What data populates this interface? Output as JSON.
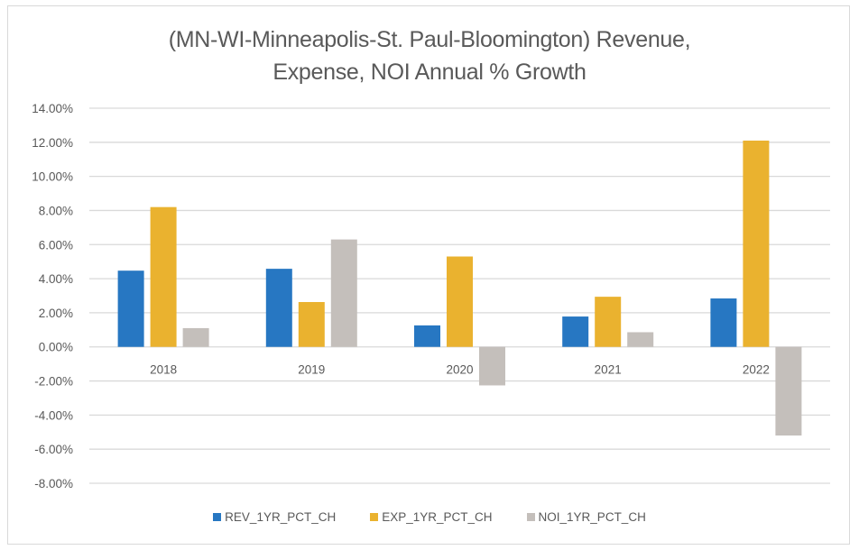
{
  "chart_data": {
    "type": "bar",
    "title_lines": [
      "(MN-WI-Minneapolis-St. Paul-Bloomington) Revenue,",
      "Expense, NOI Annual % Growth"
    ],
    "categories": [
      "2018",
      "2019",
      "2020",
      "2021",
      "2022"
    ],
    "series": [
      {
        "name": "REV_1YR_PCT_CH",
        "color": "#2777C2",
        "values": [
          4.47,
          4.58,
          1.26,
          1.78,
          2.84
        ]
      },
      {
        "name": "EXP_1YR_PCT_CH",
        "color": "#EAB22F",
        "values": [
          8.2,
          2.63,
          5.3,
          2.94,
          12.1
        ]
      },
      {
        "name": "NOI_1YR_PCT_CH",
        "color": "#C4BFBB",
        "values": [
          1.1,
          6.3,
          -2.26,
          0.86,
          -5.2
        ]
      }
    ],
    "ylim": [
      -8,
      14
    ],
    "yticks": [
      14,
      12,
      10,
      8,
      6,
      4,
      2,
      0,
      -2,
      -4,
      -6,
      -8
    ],
    "ytick_labels": [
      "14.00%",
      "12.00%",
      "10.00%",
      "8.00%",
      "6.00%",
      "4.00%",
      "2.00%",
      "0.00%",
      "-2.00%",
      "-4.00%",
      "-6.00%",
      "-8.00%"
    ],
    "xlabel": "",
    "ylabel": "",
    "grid": true,
    "legend_position": "bottom",
    "gridline_color": "#D9D9D9"
  }
}
